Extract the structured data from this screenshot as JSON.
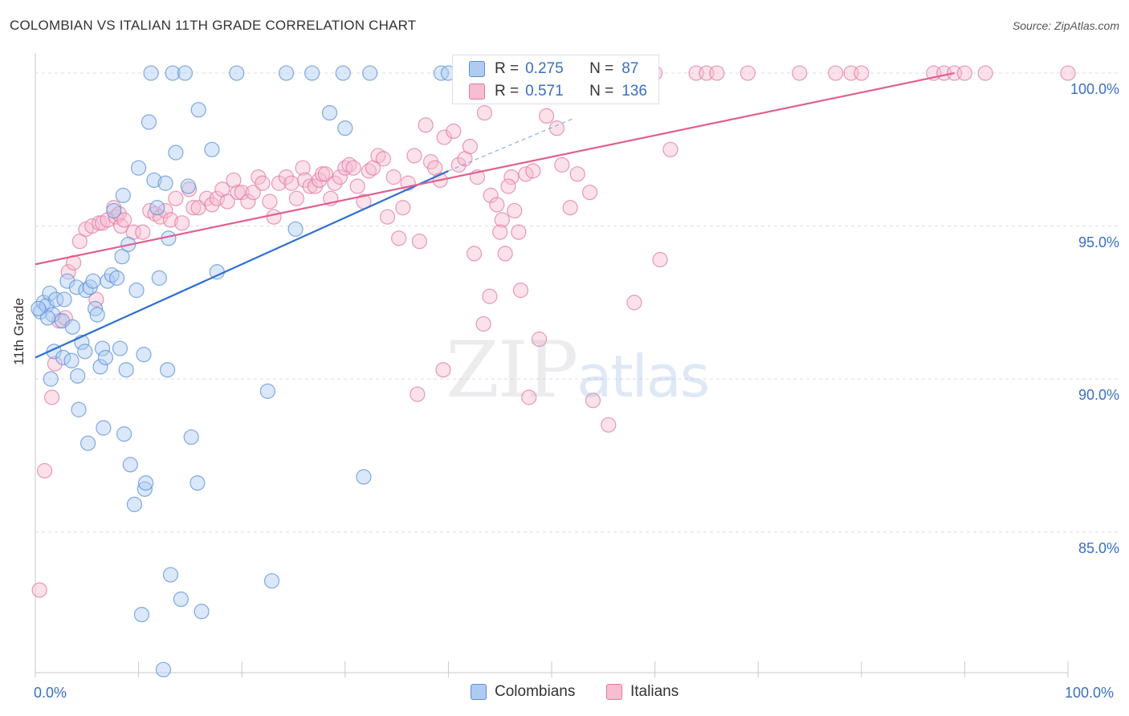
{
  "title": "COLOMBIAN VS ITALIAN 11TH GRADE CORRELATION CHART",
  "source": "Source: ZipAtlas.com",
  "watermark": {
    "part1": "ZIP",
    "part2": "atlas"
  },
  "legend": {
    "rows": [
      {
        "r_label": "R =",
        "r_value": "0.275",
        "n_label": "N =",
        "n_value": "87",
        "fill": "#aecbf3",
        "stroke": "#5b8fd6"
      },
      {
        "r_label": "R =",
        "r_value": "0.571",
        "n_label": "N =",
        "n_value": "136",
        "fill": "#f7bdd0",
        "stroke": "#e07aa0"
      }
    ]
  },
  "bottom_legend": [
    {
      "label": "Colombians",
      "fill": "#aecbf3",
      "stroke": "#5b8fd6"
    },
    {
      "label": "Italians",
      "fill": "#f7bdd0",
      "stroke": "#e07aa0"
    }
  ],
  "chart_data": {
    "type": "scatter",
    "title": "COLOMBIAN VS ITALIAN 11TH GRADE CORRELATION CHART",
    "xlabel": "",
    "ylabel": "11th Grade",
    "xlim": [
      0,
      100
    ],
    "ylim": [
      80.4,
      100.5
    ],
    "x_tick_labels": [
      "0.0%",
      "100.0%"
    ],
    "y_ticks": [
      85,
      90,
      95,
      100
    ],
    "y_tick_labels": [
      "85.0%",
      "90.0%",
      "95.0%",
      "100.0%"
    ],
    "grid": true,
    "legend_position": "top-center",
    "series": [
      {
        "name": "Colombians",
        "color": "#5b8fd6",
        "fill": "#aecbf3",
        "trend": {
          "x": [
            0,
            40
          ],
          "y": [
            90.7,
            96.8
          ],
          "dashed_to": [
            52,
            98.5
          ]
        },
        "points": [
          [
            0.5,
            92.2
          ],
          [
            0.8,
            92.5
          ],
          [
            1.1,
            92.4
          ],
          [
            1.4,
            92.8
          ],
          [
            1.7,
            92.1
          ],
          [
            2.0,
            92.6
          ],
          [
            1.2,
            92.0
          ],
          [
            0.3,
            92.3
          ],
          [
            1.8,
            90.9
          ],
          [
            1.5,
            90.0
          ],
          [
            2.6,
            91.9
          ],
          [
            2.8,
            92.6
          ],
          [
            2.7,
            90.7
          ],
          [
            3.1,
            93.2
          ],
          [
            3.5,
            90.6
          ],
          [
            3.6,
            91.7
          ],
          [
            4.0,
            93.0
          ],
          [
            4.1,
            90.1
          ],
          [
            4.2,
            89.0
          ],
          [
            4.5,
            91.2
          ],
          [
            4.8,
            90.9
          ],
          [
            4.9,
            92.9
          ],
          [
            5.1,
            87.9
          ],
          [
            5.3,
            93.0
          ],
          [
            5.6,
            93.2
          ],
          [
            5.8,
            92.3
          ],
          [
            6.0,
            92.1
          ],
          [
            6.3,
            90.4
          ],
          [
            6.5,
            91.0
          ],
          [
            6.6,
            88.4
          ],
          [
            6.8,
            90.7
          ],
          [
            7.0,
            93.2
          ],
          [
            7.4,
            93.4
          ],
          [
            7.6,
            95.5
          ],
          [
            7.9,
            93.3
          ],
          [
            8.2,
            91.0
          ],
          [
            8.4,
            94.0
          ],
          [
            8.5,
            96.0
          ],
          [
            8.6,
            88.2
          ],
          [
            8.8,
            90.3
          ],
          [
            9.0,
            94.4
          ],
          [
            9.2,
            87.2
          ],
          [
            9.6,
            85.9
          ],
          [
            9.8,
            92.9
          ],
          [
            10.0,
            96.9
          ],
          [
            10.3,
            82.3
          ],
          [
            10.5,
            90.8
          ],
          [
            10.6,
            86.4
          ],
          [
            10.7,
            86.6
          ],
          [
            11.0,
            98.4
          ],
          [
            11.2,
            100.0
          ],
          [
            11.5,
            96.5
          ],
          [
            11.8,
            95.6
          ],
          [
            12.0,
            93.3
          ],
          [
            12.4,
            80.5
          ],
          [
            12.6,
            96.4
          ],
          [
            12.8,
            90.3
          ],
          [
            12.9,
            94.6
          ],
          [
            13.1,
            83.6
          ],
          [
            13.3,
            100.0
          ],
          [
            13.6,
            97.4
          ],
          [
            14.1,
            82.8
          ],
          [
            14.5,
            100.0
          ],
          [
            14.8,
            96.3
          ],
          [
            15.1,
            88.1
          ],
          [
            15.7,
            86.6
          ],
          [
            15.8,
            98.8
          ],
          [
            16.1,
            82.4
          ],
          [
            17.1,
            97.5
          ],
          [
            17.6,
            93.5
          ],
          [
            19.5,
            100.0
          ],
          [
            22.5,
            89.6
          ],
          [
            22.9,
            83.4
          ],
          [
            24.3,
            100.0
          ],
          [
            25.2,
            94.9
          ],
          [
            26.8,
            100.0
          ],
          [
            28.5,
            98.7
          ],
          [
            29.8,
            100.0
          ],
          [
            30.0,
            98.2
          ],
          [
            31.8,
            86.8
          ],
          [
            32.4,
            100.0
          ],
          [
            39.3,
            100.0
          ],
          [
            40.0,
            100.0
          ],
          [
            42.0,
            100.0
          ],
          [
            44.0,
            100.0
          ],
          [
            46.0,
            100.0
          ],
          [
            48.0,
            100.0
          ]
        ]
      },
      {
        "name": "Italians",
        "color": "#e07aa0",
        "fill": "#f7bdd0",
        "trend": {
          "x": [
            0,
            89
          ],
          "y": [
            93.75,
            100.0
          ]
        },
        "points": [
          [
            0.4,
            83.1
          ],
          [
            0.9,
            87.0
          ],
          [
            1.6,
            89.4
          ],
          [
            1.9,
            90.5
          ],
          [
            2.3,
            91.9
          ],
          [
            2.9,
            92.0
          ],
          [
            3.2,
            93.5
          ],
          [
            3.7,
            93.8
          ],
          [
            4.3,
            94.5
          ],
          [
            4.9,
            94.9
          ],
          [
            5.5,
            95.0
          ],
          [
            5.9,
            92.6
          ],
          [
            6.2,
            95.1
          ],
          [
            6.5,
            95.1
          ],
          [
            7.0,
            95.2
          ],
          [
            7.6,
            95.6
          ],
          [
            7.8,
            95.3
          ],
          [
            8.1,
            95.4
          ],
          [
            8.3,
            95.0
          ],
          [
            8.6,
            95.2
          ],
          [
            9.5,
            94.8
          ],
          [
            10.4,
            94.8
          ],
          [
            11.1,
            95.5
          ],
          [
            11.6,
            95.4
          ],
          [
            12.1,
            95.3
          ],
          [
            12.6,
            95.5
          ],
          [
            13.1,
            95.2
          ],
          [
            13.6,
            95.9
          ],
          [
            14.2,
            95.1
          ],
          [
            14.9,
            96.2
          ],
          [
            15.3,
            95.6
          ],
          [
            15.8,
            95.6
          ],
          [
            16.6,
            95.9
          ],
          [
            17.1,
            95.7
          ],
          [
            17.6,
            95.9
          ],
          [
            18.1,
            96.2
          ],
          [
            18.6,
            95.8
          ],
          [
            19.2,
            96.5
          ],
          [
            19.6,
            96.1
          ],
          [
            20.0,
            96.1
          ],
          [
            20.6,
            95.8
          ],
          [
            21.1,
            96.1
          ],
          [
            21.6,
            96.6
          ],
          [
            22.0,
            96.4
          ],
          [
            22.7,
            95.8
          ],
          [
            23.1,
            95.3
          ],
          [
            23.6,
            96.4
          ],
          [
            24.3,
            96.6
          ],
          [
            24.8,
            96.4
          ],
          [
            25.3,
            95.9
          ],
          [
            25.9,
            96.9
          ],
          [
            26.1,
            96.5
          ],
          [
            26.6,
            96.3
          ],
          [
            27.1,
            96.3
          ],
          [
            27.5,
            96.5
          ],
          [
            27.8,
            96.7
          ],
          [
            28.1,
            96.7
          ],
          [
            28.6,
            95.9
          ],
          [
            29.0,
            96.4
          ],
          [
            29.5,
            96.6
          ],
          [
            30.0,
            96.9
          ],
          [
            30.4,
            97.0
          ],
          [
            30.8,
            96.9
          ],
          [
            31.2,
            96.3
          ],
          [
            31.8,
            95.8
          ],
          [
            32.3,
            96.8
          ],
          [
            32.7,
            96.9
          ],
          [
            33.2,
            97.3
          ],
          [
            33.7,
            97.2
          ],
          [
            34.1,
            95.3
          ],
          [
            34.7,
            96.6
          ],
          [
            35.2,
            94.6
          ],
          [
            35.6,
            95.6
          ],
          [
            36.1,
            96.4
          ],
          [
            36.7,
            97.3
          ],
          [
            37.2,
            94.5
          ],
          [
            37.8,
            98.3
          ],
          [
            38.3,
            97.1
          ],
          [
            38.7,
            96.9
          ],
          [
            39.2,
            96.5
          ],
          [
            39.6,
            97.9
          ],
          [
            40.5,
            98.1
          ],
          [
            41.0,
            97.0
          ],
          [
            41.6,
            97.2
          ],
          [
            42.1,
            97.6
          ],
          [
            42.8,
            96.6
          ],
          [
            43.5,
            98.7
          ],
          [
            44.1,
            96.0
          ],
          [
            44.7,
            95.7
          ],
          [
            45.2,
            95.2
          ],
          [
            46.1,
            96.6
          ],
          [
            46.8,
            94.8
          ],
          [
            47.5,
            96.7
          ],
          [
            48.2,
            96.8
          ],
          [
            37.0,
            89.5
          ],
          [
            39.5,
            90.3
          ],
          [
            43.4,
            91.8
          ],
          [
            47.8,
            89.4
          ],
          [
            53.0,
            100.0
          ],
          [
            55.0,
            100.0
          ],
          [
            56.0,
            100.0
          ],
          [
            58.5,
            100.0
          ],
          [
            60.0,
            100.0
          ],
          [
            64.0,
            100.0
          ],
          [
            65.0,
            100.0
          ],
          [
            66.0,
            100.0
          ],
          [
            69.0,
            100.0
          ],
          [
            74.0,
            100.0
          ],
          [
            77.5,
            100.0
          ],
          [
            79.0,
            100.0
          ],
          [
            80.0,
            100.0
          ],
          [
            87.0,
            100.0
          ],
          [
            88.0,
            100.0
          ],
          [
            89.0,
            100.0
          ],
          [
            90.0,
            100.0
          ],
          [
            92.0,
            100.0
          ],
          [
            100.0,
            100.0
          ],
          [
            54.0,
            89.3
          ],
          [
            55.5,
            88.5
          ],
          [
            58.0,
            92.5
          ],
          [
            60.5,
            93.9
          ],
          [
            61.5,
            97.5
          ],
          [
            44.0,
            92.7
          ],
          [
            45.0,
            94.8
          ],
          [
            45.5,
            94.1
          ],
          [
            47.0,
            92.9
          ],
          [
            48.8,
            91.3
          ],
          [
            49.5,
            98.6
          ],
          [
            50.5,
            98.2
          ],
          [
            51.0,
            97.0
          ],
          [
            52.5,
            96.7
          ],
          [
            45.8,
            96.3
          ],
          [
            46.4,
            95.5
          ],
          [
            42.5,
            94.1
          ],
          [
            51.8,
            95.6
          ],
          [
            53.7,
            96.1
          ]
        ]
      }
    ]
  }
}
